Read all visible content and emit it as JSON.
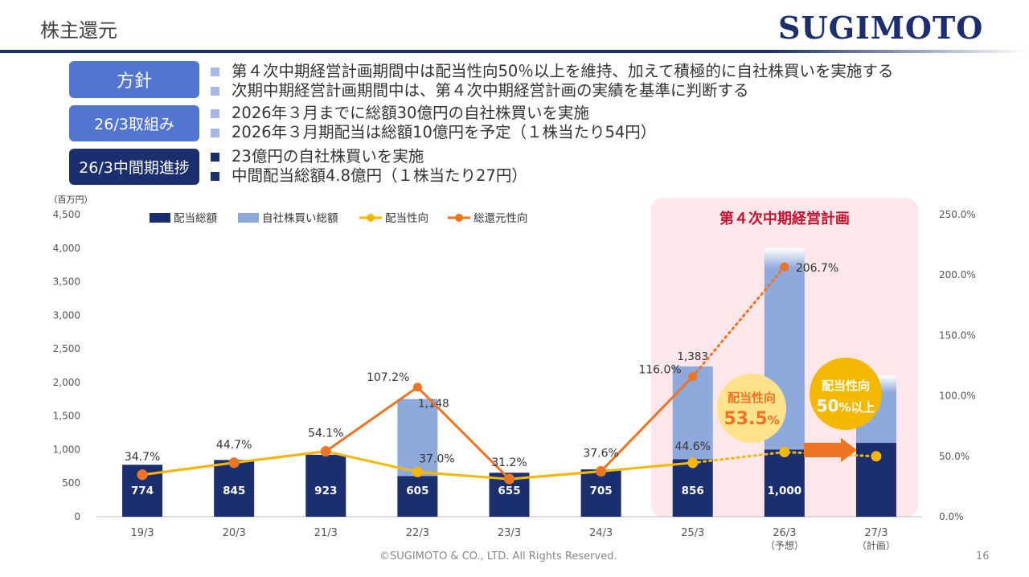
{
  "header": {
    "title": "株主還元",
    "logo": "SUGIMOTO"
  },
  "policy": [
    {
      "tag": "方針",
      "tag_color": "#5276d0",
      "bullet_color": "#a6b8e4",
      "lines": [
        "第４次中期経営計画期間中は配当性向50％以上を維持、加えて積極的に自社株買いを実施する",
        "次期中期経営計画期間中は、第４次中期経営計画の実績を基準に判断する"
      ]
    },
    {
      "tag": "26/3取組み",
      "tag_color": "#5276d0",
      "bullet_color": "#a6b8e4",
      "lines": [
        "2026年３月までに総額30億円の自社株買いを実施",
        "2026年３月期配当は総額10億円を予定（１株当たり54円）"
      ]
    },
    {
      "tag": "26/3中間期進捗",
      "tag_color": "#1b2f6e",
      "bullet_color": "#1b2f6e",
      "lines": [
        "23億円の自社株買いを実施",
        "中間配当総額4.8億円（１株当たり27円）"
      ]
    }
  ],
  "chart_data": {
    "type": "bar",
    "y_unit": "（百万円）",
    "categories": [
      "19/3",
      "20/3",
      "21/3",
      "22/3",
      "23/3",
      "24/3",
      "25/3",
      "26/3",
      "27/3"
    ],
    "category_sublabels": [
      "",
      "",
      "",
      "",
      "",
      "",
      "",
      "（予想）",
      "（計画）"
    ],
    "ylim": [
      0,
      4500
    ],
    "yticks": [
      0,
      500,
      1000,
      1500,
      2000,
      2500,
      3000,
      3500,
      4000,
      4500
    ],
    "y2lim": [
      0,
      250
    ],
    "y2ticks": [
      0,
      50,
      100,
      150,
      200,
      250
    ],
    "y2tick_labels": [
      "0.0%",
      "50.0%",
      "100.0%",
      "150.0%",
      "200.0%",
      "250.0%"
    ],
    "series": [
      {
        "name": "配当総額",
        "kind": "bar",
        "color": "#1b2f6e",
        "values": [
          774,
          845,
          923,
          605,
          655,
          705,
          856,
          1000,
          1100
        ],
        "labels": [
          "774",
          "845",
          "923",
          "605",
          "655",
          "705",
          "856",
          "1,000",
          ""
        ]
      },
      {
        "name": "自社株買い総額",
        "kind": "bar-stacked",
        "color": "#8ea9dc",
        "values": [
          0,
          0,
          0,
          1148,
          0,
          0,
          1383,
          3000,
          1000
        ],
        "labels": [
          "",
          "",
          "",
          "1,148",
          "",
          "",
          "1,383",
          "",
          ""
        ]
      },
      {
        "name": "配当性向",
        "kind": "line",
        "axis": "right",
        "color": "#f5b800",
        "values": [
          34.7,
          44.7,
          54.1,
          37.0,
          31.2,
          37.6,
          44.6,
          53.5,
          50.0
        ],
        "labels": [
          "34.7%",
          "44.7%",
          "54.1%",
          "37.0%",
          "31.2%",
          "37.6%",
          "44.6%",
          "",
          ""
        ]
      },
      {
        "name": "総還元性向",
        "kind": "line",
        "axis": "right",
        "color": "#ed7422",
        "values": [
          34.7,
          44.7,
          54.1,
          107.2,
          31.2,
          37.6,
          116.0,
          206.7,
          null
        ],
        "labels": [
          "",
          "",
          "",
          "107.2%",
          "",
          "",
          "116.0%",
          "206.7%",
          ""
        ]
      }
    ],
    "highlight": {
      "title": "第４次中期経営計画",
      "from_category": "25/3",
      "to_category": "27/3",
      "fill": "#fde7ea",
      "title_color": "#c8102e"
    },
    "callouts": [
      {
        "line1": "配当性向",
        "line2": "53.5",
        "line2_unit": "%",
        "color": "#ffe28a",
        "text_color": "#ed7422"
      },
      {
        "line1": "配当性向",
        "line2": "50",
        "line2_unit": "%以上",
        "color": "#f5b800",
        "text_color": "#ffffff"
      }
    ]
  },
  "footer": {
    "copyright": "©SUGIMOTO & CO., LTD. All Rights Reserved.",
    "page": "16"
  }
}
